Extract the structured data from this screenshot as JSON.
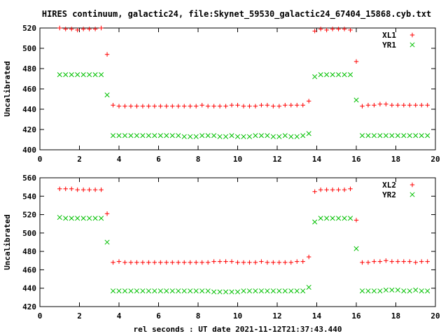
{
  "title": "HIRES continuum, galactic24, file:Skynet_59530_galactic24_67404_15868.cyb.txt",
  "chart_data": [
    {
      "type": "scatter",
      "ylabel": "Uncalibrated",
      "xlim": [
        0,
        20
      ],
      "ylim": [
        400,
        520
      ],
      "xticks": [
        0,
        2,
        4,
        6,
        8,
        10,
        12,
        14,
        16,
        18,
        20
      ],
      "yticks": [
        400,
        420,
        440,
        460,
        480,
        500,
        520
      ],
      "legend_position": "top-right",
      "series": [
        {
          "name": "XL1",
          "marker": "plus",
          "color": "#ff0000",
          "x": [
            1.0,
            1.3,
            1.6,
            1.9,
            2.2,
            2.5,
            2.8,
            3.1,
            3.4,
            3.7,
            4.0,
            4.3,
            4.6,
            4.9,
            5.2,
            5.5,
            5.8,
            6.1,
            6.4,
            6.7,
            7.0,
            7.3,
            7.6,
            7.9,
            8.2,
            8.5,
            8.8,
            9.1,
            9.4,
            9.7,
            10.0,
            10.3,
            10.6,
            10.9,
            11.2,
            11.5,
            11.8,
            12.1,
            12.4,
            12.7,
            13.0,
            13.3,
            13.6,
            13.9,
            14.2,
            14.5,
            14.8,
            15.1,
            15.4,
            15.7,
            16.0,
            16.3,
            16.6,
            16.9,
            17.2,
            17.5,
            17.8,
            18.1,
            18.4,
            18.7,
            19.0,
            19.3,
            19.6
          ],
          "y": [
            520,
            519,
            519,
            518,
            519,
            519,
            519,
            520,
            494,
            444,
            443,
            443,
            443,
            443,
            443,
            443,
            443,
            443,
            443,
            443,
            443,
            443,
            443,
            443,
            444,
            443,
            443,
            443,
            443,
            444,
            444,
            443,
            443,
            443,
            444,
            444,
            443,
            443,
            444,
            444,
            444,
            444,
            448,
            517,
            519,
            518,
            519,
            519,
            519,
            518,
            487,
            443,
            444,
            444,
            445,
            445,
            444,
            444,
            444,
            444,
            444,
            444,
            444
          ]
        },
        {
          "name": "YR1",
          "marker": "cross",
          "color": "#00c000",
          "x": [
            1.0,
            1.3,
            1.6,
            1.9,
            2.2,
            2.5,
            2.8,
            3.1,
            3.4,
            3.7,
            4.0,
            4.3,
            4.6,
            4.9,
            5.2,
            5.5,
            5.8,
            6.1,
            6.4,
            6.7,
            7.0,
            7.3,
            7.6,
            7.9,
            8.2,
            8.5,
            8.8,
            9.1,
            9.4,
            9.7,
            10.0,
            10.3,
            10.6,
            10.9,
            11.2,
            11.5,
            11.8,
            12.1,
            12.4,
            12.7,
            13.0,
            13.3,
            13.6,
            13.9,
            14.2,
            14.5,
            14.8,
            15.1,
            15.4,
            15.7,
            16.0,
            16.3,
            16.6,
            16.9,
            17.2,
            17.5,
            17.8,
            18.1,
            18.4,
            18.7,
            19.0,
            19.3,
            19.6
          ],
          "y": [
            474,
            474,
            474,
            474,
            474,
            474,
            474,
            474,
            454,
            414,
            414,
            414,
            414,
            414,
            414,
            414,
            414,
            414,
            414,
            414,
            414,
            413,
            413,
            413,
            414,
            414,
            414,
            413,
            413,
            414,
            413,
            413,
            413,
            414,
            414,
            414,
            413,
            413,
            414,
            413,
            413,
            414,
            416,
            472,
            474,
            474,
            474,
            474,
            474,
            474,
            449,
            414,
            414,
            414,
            414,
            414,
            414,
            414,
            414,
            414,
            414,
            414,
            414
          ]
        }
      ]
    },
    {
      "type": "scatter",
      "ylabel": "Uncalibrated",
      "xlabel": "rel seconds : UT date 2021-11-12T21:37:43.440",
      "xlim": [
        0,
        20
      ],
      "ylim": [
        420,
        560
      ],
      "xticks": [
        0,
        2,
        4,
        6,
        8,
        10,
        12,
        14,
        16,
        18,
        20
      ],
      "yticks": [
        420,
        440,
        460,
        480,
        500,
        520,
        540,
        560
      ],
      "legend_position": "top-right",
      "series": [
        {
          "name": "XL2",
          "marker": "plus",
          "color": "#ff0000",
          "x": [
            1.0,
            1.3,
            1.6,
            1.9,
            2.2,
            2.5,
            2.8,
            3.1,
            3.4,
            3.7,
            4.0,
            4.3,
            4.6,
            4.9,
            5.2,
            5.5,
            5.8,
            6.1,
            6.4,
            6.7,
            7.0,
            7.3,
            7.6,
            7.9,
            8.2,
            8.5,
            8.8,
            9.1,
            9.4,
            9.7,
            10.0,
            10.3,
            10.6,
            10.9,
            11.2,
            11.5,
            11.8,
            12.1,
            12.4,
            12.7,
            13.0,
            13.3,
            13.6,
            13.9,
            14.2,
            14.5,
            14.8,
            15.1,
            15.4,
            15.7,
            16.0,
            16.3,
            16.6,
            16.9,
            17.2,
            17.5,
            17.8,
            18.1,
            18.4,
            18.7,
            19.0,
            19.3,
            19.6
          ],
          "y": [
            548,
            548,
            548,
            547,
            547,
            547,
            547,
            547,
            521,
            468,
            469,
            468,
            468,
            468,
            468,
            468,
            468,
            468,
            468,
            468,
            468,
            468,
            468,
            468,
            468,
            468,
            469,
            469,
            469,
            469,
            468,
            468,
            468,
            468,
            469,
            468,
            468,
            468,
            468,
            468,
            469,
            469,
            474,
            545,
            547,
            547,
            547,
            547,
            547,
            548,
            514,
            468,
            468,
            469,
            469,
            470,
            469,
            469,
            469,
            469,
            468,
            469,
            469
          ]
        },
        {
          "name": "YR2",
          "marker": "cross",
          "color": "#00c000",
          "x": [
            1.0,
            1.3,
            1.6,
            1.9,
            2.2,
            2.5,
            2.8,
            3.1,
            3.4,
            3.7,
            4.0,
            4.3,
            4.6,
            4.9,
            5.2,
            5.5,
            5.8,
            6.1,
            6.4,
            6.7,
            7.0,
            7.3,
            7.6,
            7.9,
            8.2,
            8.5,
            8.8,
            9.1,
            9.4,
            9.7,
            10.0,
            10.3,
            10.6,
            10.9,
            11.2,
            11.5,
            11.8,
            12.1,
            12.4,
            12.7,
            13.0,
            13.3,
            13.6,
            13.9,
            14.2,
            14.5,
            14.8,
            15.1,
            15.4,
            15.7,
            16.0,
            16.3,
            16.6,
            16.9,
            17.2,
            17.5,
            17.8,
            18.1,
            18.4,
            18.7,
            19.0,
            19.3,
            19.6
          ],
          "y": [
            517,
            516,
            516,
            516,
            516,
            516,
            516,
            516,
            490,
            437,
            437,
            437,
            437,
            437,
            437,
            437,
            437,
            437,
            437,
            437,
            437,
            437,
            437,
            437,
            437,
            437,
            436,
            436,
            436,
            436,
            436,
            437,
            437,
            437,
            437,
            437,
            437,
            437,
            437,
            437,
            437,
            437,
            441,
            512,
            516,
            516,
            516,
            516,
            516,
            516,
            483,
            437,
            437,
            437,
            437,
            438,
            438,
            438,
            437,
            437,
            438,
            437,
            437
          ]
        }
      ]
    }
  ]
}
